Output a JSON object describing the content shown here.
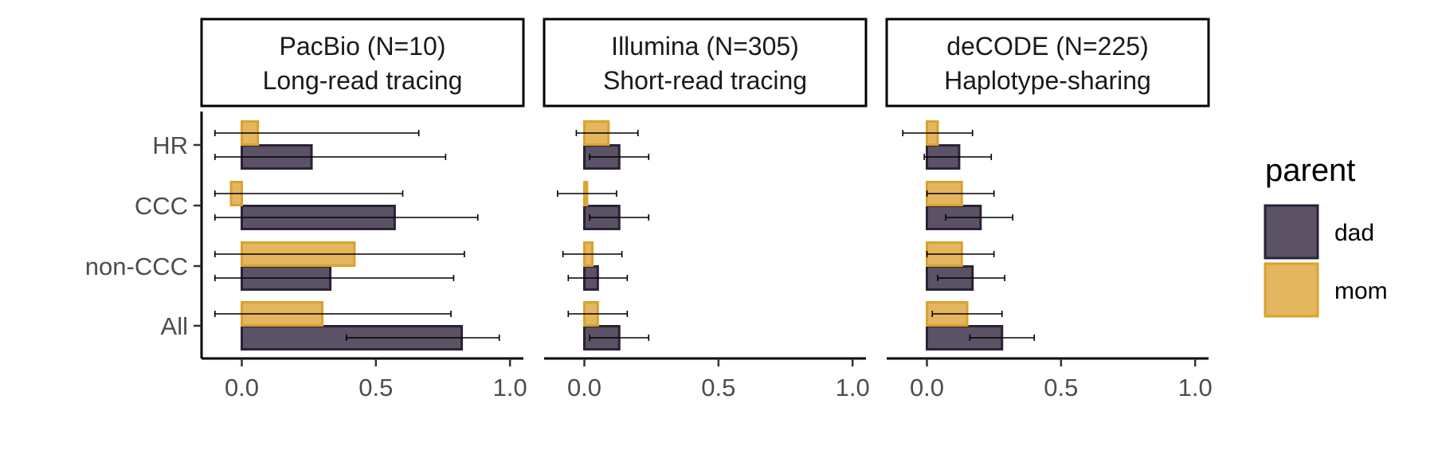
{
  "chart_data": {
    "type": "bar",
    "orientation": "horizontal",
    "categories": [
      "HR",
      "CCC",
      "non-CCC",
      "All"
    ],
    "xlim": [
      -0.15,
      1.05
    ],
    "xticks": [
      0.0,
      0.5,
      1.0
    ],
    "xtick_labels": [
      "0.0",
      "0.5",
      "1.0"
    ],
    "colors": {
      "dad": "#5c5266",
      "dad_border": "#2a2236",
      "mom": "#e5b660",
      "mom_border": "#d9a22e"
    },
    "legend": {
      "title": "parent",
      "entries": [
        "dad",
        "mom"
      ],
      "position": "right"
    },
    "panels": [
      {
        "title_line1": "PacBio (N=10)",
        "title_line2": "Long-read tracing",
        "series": [
          {
            "name": "dad",
            "values": [
              0.26,
              0.57,
              0.33,
              0.82
            ],
            "err_low": [
              -0.1,
              -0.1,
              -0.1,
              0.39
            ],
            "err_high": [
              0.76,
              0.88,
              0.79,
              0.96
            ]
          },
          {
            "name": "mom",
            "values": [
              0.06,
              -0.04,
              0.42,
              0.3
            ],
            "err_low": [
              -0.1,
              -0.1,
              -0.1,
              -0.1
            ],
            "err_high": [
              0.66,
              0.6,
              0.83,
              0.78
            ]
          }
        ]
      },
      {
        "title_line1": "Illumina (N=305)",
        "title_line2": "Short-read tracing",
        "series": [
          {
            "name": "dad",
            "values": [
              0.13,
              0.13,
              0.05,
              0.13
            ],
            "err_low": [
              0.02,
              0.02,
              -0.06,
              0.02
            ],
            "err_high": [
              0.24,
              0.24,
              0.16,
              0.24
            ]
          },
          {
            "name": "mom",
            "values": [
              0.09,
              0.01,
              0.03,
              0.05
            ],
            "err_low": [
              -0.03,
              -0.1,
              -0.08,
              -0.06
            ],
            "err_high": [
              0.2,
              0.12,
              0.14,
              0.16
            ]
          }
        ]
      },
      {
        "title_line1": "deCODE (N=225)",
        "title_line2": "Haplotype-sharing",
        "series": [
          {
            "name": "dad",
            "values": [
              0.12,
              0.2,
              0.17,
              0.28
            ],
            "err_low": [
              -0.01,
              0.07,
              0.04,
              0.16
            ],
            "err_high": [
              0.24,
              0.32,
              0.29,
              0.4
            ]
          },
          {
            "name": "mom",
            "values": [
              0.04,
              0.13,
              0.13,
              0.15
            ],
            "err_low": [
              -0.09,
              0.0,
              0.0,
              0.02
            ],
            "err_high": [
              0.17,
              0.25,
              0.25,
              0.28
            ]
          }
        ]
      }
    ]
  }
}
